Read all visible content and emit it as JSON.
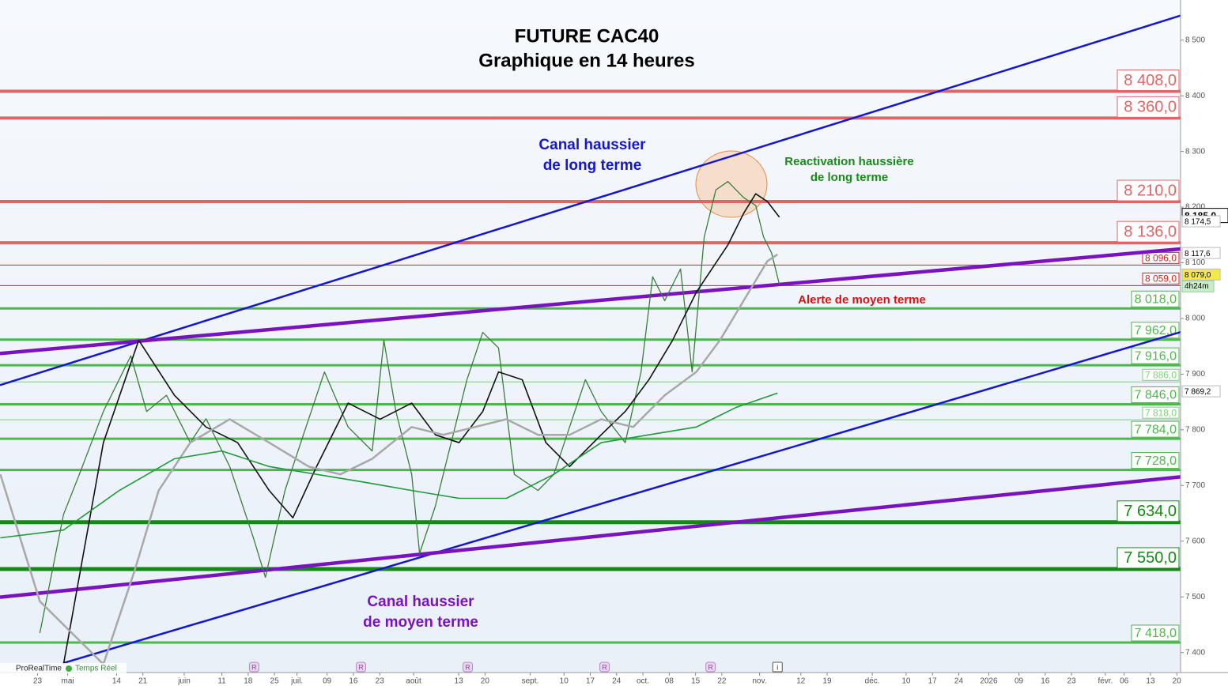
{
  "chart_data": {
    "type": "line",
    "title": "FUTURE CAC40",
    "subtitle": "Graphique en 14 heures",
    "xlim": [
      -10,
      304
    ],
    "ylim": [
      7364,
      8572
    ],
    "xticks": [
      {
        "value": 0,
        "label": "23"
      },
      {
        "value": 8,
        "label": "mai"
      },
      {
        "value": 21,
        "label": "14"
      },
      {
        "value": 28,
        "label": "21"
      },
      {
        "value": 39,
        "label": "juin"
      },
      {
        "value": 49,
        "label": "11"
      },
      {
        "value": 56,
        "label": "18"
      },
      {
        "value": 63,
        "label": "25"
      },
      {
        "value": 69,
        "label": "juil."
      },
      {
        "value": 77,
        "label": "09"
      },
      {
        "value": 84,
        "label": "16"
      },
      {
        "value": 91,
        "label": "23"
      },
      {
        "value": 100,
        "label": "août"
      },
      {
        "value": 112,
        "label": "13"
      },
      {
        "value": 119,
        "label": "20"
      },
      {
        "value": 131,
        "label": "sept."
      },
      {
        "value": 140,
        "label": "10"
      },
      {
        "value": 147,
        "label": "17"
      },
      {
        "value": 154,
        "label": "24"
      },
      {
        "value": 161,
        "label": "oct."
      },
      {
        "value": 168,
        "label": "08"
      },
      {
        "value": 175,
        "label": "15"
      },
      {
        "value": 182,
        "label": "22"
      },
      {
        "value": 192,
        "label": "nov."
      },
      {
        "value": 203,
        "label": "12"
      },
      {
        "value": 210,
        "label": "19"
      },
      {
        "value": 222,
        "label": "déc."
      },
      {
        "value": 231,
        "label": "10"
      },
      {
        "value": 238,
        "label": "17"
      },
      {
        "value": 245,
        "label": "24"
      },
      {
        "value": 253,
        "label": "2026"
      },
      {
        "value": 261,
        "label": "09"
      },
      {
        "value": 268,
        "label": "16"
      },
      {
        "value": 275,
        "label": "23"
      },
      {
        "value": 284,
        "label": "févr."
      },
      {
        "value": 289,
        "label": "06"
      },
      {
        "value": 296,
        "label": "13"
      },
      {
        "value": 303,
        "label": "20"
      }
    ],
    "yticks": [
      {
        "value": 7400,
        "label": "7 400"
      },
      {
        "value": 7500,
        "label": "7 500"
      },
      {
        "value": 7600,
        "label": "7 600"
      },
      {
        "value": 7700,
        "label": "7 700"
      },
      {
        "value": 7800,
        "label": "7 800"
      },
      {
        "value": 7900,
        "label": "7 900"
      },
      {
        "value": 8000,
        "label": "8 000"
      },
      {
        "value": 8100,
        "label": "8 100"
      },
      {
        "value": 8200,
        "label": "8 200"
      },
      {
        "value": 8300,
        "label": "8 300"
      },
      {
        "value": 8400,
        "label": "8 400"
      },
      {
        "value": 8500,
        "label": "8 500"
      }
    ],
    "series": [
      {
        "color": "#3b7d3b",
        "width": 1.3,
        "x": [
          0.6,
          6.9,
          11.1,
          17.5,
          24.8,
          29.0,
          34.3,
          40.6,
          44.8,
          51.1,
          57.4,
          60.6,
          65.8,
          70.0,
          76.3,
          82.6,
          89.0,
          92.1,
          95.3,
          99.5,
          101.6,
          105.8,
          110.0,
          114.2,
          118.4,
          122.6,
          126.8,
          133.1,
          137.3,
          141.5,
          145.7,
          149.9,
          156.3,
          160.5,
          163.6,
          166.8,
          171.0,
          174.1,
          177.3,
          180.4,
          183.6,
          187.8,
          191.0,
          193.1,
          195.2,
          197.3
        ],
        "values": [
          7435,
          7648,
          7720,
          7833,
          7933,
          7833,
          7862,
          7777,
          7820,
          7734,
          7606,
          7535,
          7691,
          7777,
          7904,
          7805,
          7762,
          7961,
          7833,
          7720,
          7578,
          7663,
          7777,
          7890,
          7975,
          7947,
          7720,
          7691,
          7720,
          7805,
          7890,
          7833,
          7777,
          7904,
          8075,
          8032,
          8089,
          7904,
          8146,
          8231,
          8246,
          8217,
          8203,
          8146,
          8118,
          8061
        ]
      },
      {
        "color": "#111111",
        "width": 1.6,
        "x": [
          6.9,
          17.5,
          26.9,
          36.4,
          44.8,
          53.2,
          61.6,
          67.9,
          74.2,
          82.6,
          91.1,
          99.5,
          105.8,
          112.1,
          118.4,
          122.6,
          128.9,
          135.2,
          141.5,
          149.9,
          156.3,
          162.6,
          168.9,
          175.2,
          183.6,
          187.8,
          191.0,
          194.1,
          197.3
        ],
        "values": [
          7379,
          7777,
          7961,
          7862,
          7805,
          7777,
          7691,
          7642,
          7734,
          7848,
          7819,
          7848,
          7791,
          7777,
          7833,
          7904,
          7890,
          7777,
          7734,
          7791,
          7833,
          7890,
          7961,
          8047,
          8132,
          8189,
          8224,
          8210,
          8182
        ]
      },
      {
        "color": "#a8a8a8",
        "width": 2.5,
        "x": [
          -9.9,
          0.6,
          17.5,
          25.9,
          32.2,
          40.6,
          51.1,
          61.6,
          72.1,
          80.5,
          89.0,
          99.5,
          107.9,
          116.3,
          124.7,
          133.1,
          141.5,
          149.9,
          158.4,
          166.8,
          175.2,
          181.5,
          187.8,
          194.1,
          196.8
        ],
        "values": [
          7720,
          7492,
          7379,
          7549,
          7691,
          7777,
          7819,
          7777,
          7734,
          7720,
          7748,
          7805,
          7791,
          7805,
          7819,
          7791,
          7791,
          7819,
          7805,
          7862,
          7904,
          7961,
          8032,
          8103,
          8115
        ]
      },
      {
        "color": "#1e9a3a",
        "width": 1.6,
        "x": [
          -9.9,
          6.9,
          21.7,
          36.4,
          49.0,
          61.6,
          74.2,
          86.8,
          99.5,
          112.1,
          124.7,
          137.3,
          149.9,
          162.6,
          175.2,
          185.7,
          196.8
        ],
        "values": [
          7606,
          7620,
          7691,
          7748,
          7762,
          7734,
          7720,
          7706,
          7691,
          7677,
          7677,
          7720,
          7777,
          7791,
          7805,
          7840,
          7866
        ]
      }
    ],
    "trendlines": [
      {
        "color": "#1515d6",
        "width": 2.5,
        "x": [
          -10,
          304
        ],
        "values": [
          7880.3,
          8544
        ]
      },
      {
        "color": "#1515d6",
        "width": 2.5,
        "x": [
          6.8,
          304
        ],
        "values": [
          7381,
          7975.6
        ]
      },
      {
        "color": "#7a12c0",
        "width": 4.5,
        "x": [
          -10,
          304
        ],
        "values": [
          7937.2,
          8124.8
        ]
      },
      {
        "color": "#7a12c0",
        "width": 4.5,
        "x": [
          -10,
          304
        ],
        "values": [
          7499.4,
          7715.5
        ]
      }
    ],
    "levels": [
      {
        "value": 8408,
        "label": "8 408,0",
        "color": "#e06666",
        "size": "large"
      },
      {
        "value": 8360,
        "label": "8 360,0",
        "color": "#e06666",
        "size": "large"
      },
      {
        "value": 8210,
        "label": "8 210,0",
        "color": "#e06666",
        "size": "large"
      },
      {
        "value": 8136,
        "label": "8 136,0",
        "color": "#e06666",
        "size": "large"
      },
      {
        "value": 8096,
        "label": "8 096,0",
        "color": "#d62020",
        "size": "small"
      },
      {
        "value": 8059,
        "label": "8 059,0",
        "color": "#d62020",
        "size": "small"
      },
      {
        "value": 8018,
        "label": "8 018,0",
        "color": "#4cb84c",
        "size": "medium"
      },
      {
        "value": 7962,
        "label": "7 962,0",
        "color": "#4cb84c",
        "size": "medium"
      },
      {
        "value": 7916,
        "label": "7 916,0",
        "color": "#4cb84c",
        "size": "medium"
      },
      {
        "value": 7886,
        "label": "7 886,0",
        "color": "#7fd07f",
        "size": "small"
      },
      {
        "value": 7846,
        "label": "7 846,0",
        "color": "#4cb84c",
        "size": "medium"
      },
      {
        "value": 7818,
        "label": "7 818,0",
        "color": "#7fd07f",
        "size": "small"
      },
      {
        "value": 7784,
        "label": "7 784,0",
        "color": "#4cb84c",
        "size": "medium"
      },
      {
        "value": 7728,
        "label": "7 728,0",
        "color": "#4cb84c",
        "size": "medium"
      },
      {
        "value": 7634,
        "label": "7 634,0",
        "color": "#138a13",
        "size": "large"
      },
      {
        "value": 7550,
        "label": "7 550,0",
        "color": "#138a13",
        "size": "large"
      },
      {
        "value": 7418,
        "label": "7 418,0",
        "color": "#4cb84c",
        "size": "medium"
      }
    ],
    "price_markers": [
      {
        "value": 8185,
        "label": "8 185,0",
        "style": "current"
      },
      {
        "value": 8174.5,
        "label": "8 174,5",
        "style": "plain"
      },
      {
        "value": 8117.6,
        "label": "8 117,6",
        "style": "plain"
      },
      {
        "value": 8079,
        "label": "8 079,0",
        "style": "last",
        "note": "4h24m"
      },
      {
        "value": 7869.2,
        "label": "7 869,2",
        "style": "plain"
      }
    ],
    "annotations": [
      {
        "lines": [
          "Canal haussier",
          "de long terme"
        ],
        "color": "#1515d6",
        "size": "large"
      },
      {
        "lines": [
          "Reactivation haussière",
          "de long terme"
        ],
        "color": "#1a8a1a",
        "size": "small"
      },
      {
        "lines": [
          "Alerte de moyen terme"
        ],
        "color": "#e01010",
        "size": "small"
      },
      {
        "lines": [
          "Canal haussier",
          "de moyen terme"
        ],
        "color": "#7a12c0",
        "size": "large"
      }
    ],
    "events": [
      {
        "x": 57.6,
        "label": "R"
      },
      {
        "x": 86.0,
        "label": "R"
      },
      {
        "x": 114.4,
        "label": "R"
      },
      {
        "x": 150.8,
        "label": "R"
      },
      {
        "x": 179.0,
        "label": "R"
      },
      {
        "x": 196.8,
        "label": "i"
      }
    ],
    "footer": [
      "ProRealTime",
      "Temps Réel"
    ]
  }
}
